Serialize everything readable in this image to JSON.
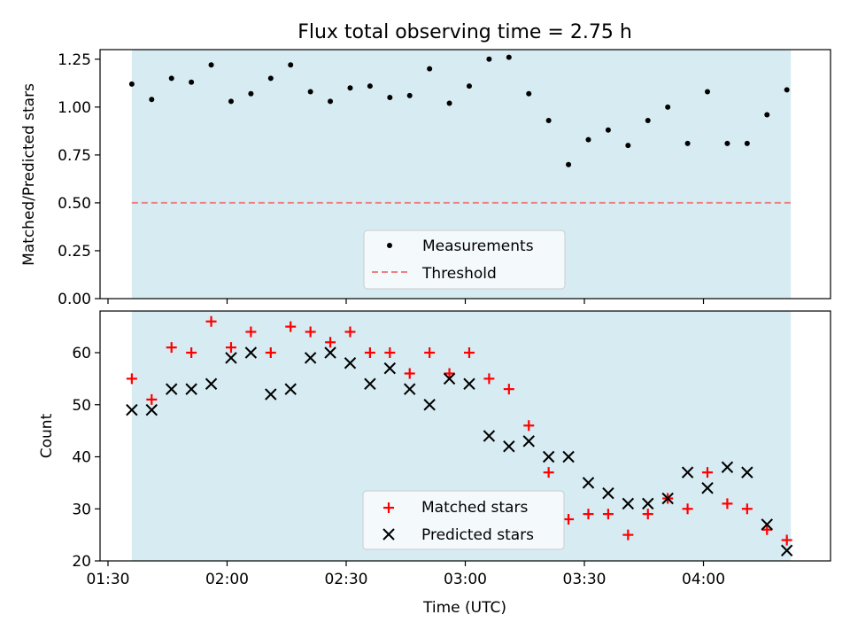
{
  "figure_title": "Flux total observing time = 2.75 h",
  "colors": {
    "shade": "#add8e6",
    "measure": "#000000",
    "threshold": "#f08080",
    "matched": "#ff0000",
    "predicted": "#000000"
  },
  "chart_data": [
    {
      "type": "scatter",
      "title": "Flux total observing time = 2.75 h",
      "xlabel": "",
      "ylabel": "Matched/Predicted stars",
      "xlim": [
        88,
        272
      ],
      "ylim": [
        0,
        1.3
      ],
      "shaded_x": [
        96,
        262
      ],
      "yticks": [
        0,
        0.25,
        0.5,
        0.75,
        1.0,
        1.25
      ],
      "ytick_labels": [
        "0.00",
        "0.25",
        "0.50",
        "0.75",
        "1.00",
        "1.25"
      ],
      "threshold": 0.5,
      "legend": [
        "Measurements",
        "Threshold"
      ],
      "legend_position": "lower-center",
      "series": [
        {
          "name": "Measurements",
          "x": [
            96,
            101,
            106,
            111,
            116,
            121,
            126,
            131,
            136,
            141,
            146,
            151,
            156,
            161,
            166,
            171,
            176,
            181,
            186,
            191,
            196,
            201,
            206,
            211,
            216,
            221,
            226,
            231,
            236,
            241,
            246,
            251,
            256,
            261
          ],
          "values": [
            1.12,
            1.04,
            1.15,
            1.13,
            1.22,
            1.03,
            1.07,
            1.15,
            1.22,
            1.08,
            1.03,
            1.1,
            1.11,
            1.05,
            1.06,
            1.2,
            1.02,
            1.11,
            1.25,
            1.26,
            1.07,
            0.93,
            0.7,
            0.83,
            0.88,
            0.8,
            0.93,
            1.0,
            0.81,
            1.08,
            0.81,
            0.81,
            0.96,
            1.09
          ]
        }
      ]
    },
    {
      "type": "scatter",
      "xlabel": "Time (UTC)",
      "ylabel": "Count",
      "xlim": [
        88,
        272
      ],
      "ylim": [
        20,
        68
      ],
      "shaded_x": [
        96,
        262
      ],
      "xticks": [
        90,
        120,
        150,
        180,
        210,
        240
      ],
      "xtick_labels": [
        "01:30",
        "02:00",
        "02:30",
        "03:00",
        "03:30",
        "04:00"
      ],
      "yticks": [
        20,
        30,
        40,
        50,
        60
      ],
      "ytick_labels": [
        "20",
        "30",
        "40",
        "50",
        "60"
      ],
      "legend": [
        "Matched stars",
        "Predicted stars"
      ],
      "legend_position": "lower-center",
      "series": [
        {
          "name": "Matched stars",
          "x": [
            96,
            101,
            106,
            111,
            116,
            121,
            126,
            131,
            136,
            141,
            146,
            151,
            156,
            161,
            166,
            171,
            176,
            181,
            186,
            191,
            196,
            201,
            206,
            211,
            216,
            221,
            226,
            231,
            236,
            241,
            246,
            251,
            256,
            261
          ],
          "values": [
            55,
            51,
            61,
            60,
            66,
            61,
            64,
            60,
            65,
            64,
            62,
            64,
            60,
            60,
            56,
            60,
            56,
            60,
            55,
            53,
            46,
            37,
            28,
            29,
            29,
            25,
            29,
            32,
            30,
            37,
            31,
            30,
            26,
            24
          ]
        },
        {
          "name": "Predicted stars",
          "x": [
            96,
            101,
            106,
            111,
            116,
            121,
            126,
            131,
            136,
            141,
            146,
            151,
            156,
            161,
            166,
            171,
            176,
            181,
            186,
            191,
            196,
            201,
            206,
            211,
            216,
            221,
            226,
            231,
            236,
            241,
            246,
            251,
            256,
            261
          ],
          "values": [
            49,
            49,
            53,
            53,
            54,
            59,
            60,
            52,
            53,
            59,
            60,
            58,
            54,
            57,
            53,
            50,
            55,
            54,
            44,
            42,
            43,
            40,
            40,
            35,
            33,
            31,
            31,
            32,
            37,
            34,
            38,
            37,
            27,
            22
          ]
        }
      ]
    }
  ]
}
